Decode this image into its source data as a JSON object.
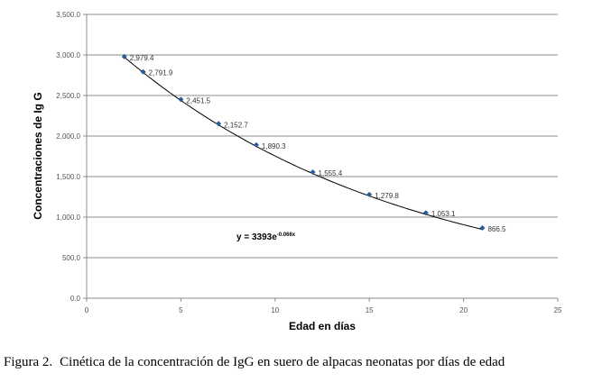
{
  "chart_data": {
    "type": "scatter",
    "xlabel": "Edad en días",
    "ylabel": "Concentraciones de Ig G",
    "xlim": [
      0,
      25
    ],
    "ylim": [
      0,
      3500
    ],
    "x_ticks": [
      "0",
      "5",
      "10",
      "15",
      "20",
      "25"
    ],
    "y_ticks": [
      "0.0",
      "500.0",
      "1,000.0",
      "1,500.0",
      "2,000.0",
      "2,500.0",
      "3,000.0",
      "3,500.0"
    ],
    "grid": "horizontal",
    "marker_color": "#2a5a9a",
    "line_color": "#000000",
    "points": [
      {
        "x": 2,
        "y": 2979.4,
        "label": "2,979.4"
      },
      {
        "x": 3,
        "y": 2791.9,
        "label": "2,791.9"
      },
      {
        "x": 5,
        "y": 2451.5,
        "label": "2,451.5"
      },
      {
        "x": 7,
        "y": 2152.7,
        "label": "2,152.7"
      },
      {
        "x": 9,
        "y": 1890.3,
        "label": "1,890.3"
      },
      {
        "x": 12,
        "y": 1555.4,
        "label": "1,555.4"
      },
      {
        "x": 15,
        "y": 1279.8,
        "label": "1,279.8"
      },
      {
        "x": 18,
        "y": 1053.1,
        "label": "1,053.1"
      },
      {
        "x": 21,
        "y": 866.5,
        "label": "866.5"
      }
    ],
    "trendline": {
      "type": "exponential",
      "a": 3393,
      "b": -0.066,
      "equation_base": "y = 3393e",
      "equation_exponent": "-0.066x"
    }
  },
  "caption": {
    "lead": "Figura 2.",
    "text": "Cinética de la concentración de IgG en suero de alpacas neonatas por días de edad"
  }
}
